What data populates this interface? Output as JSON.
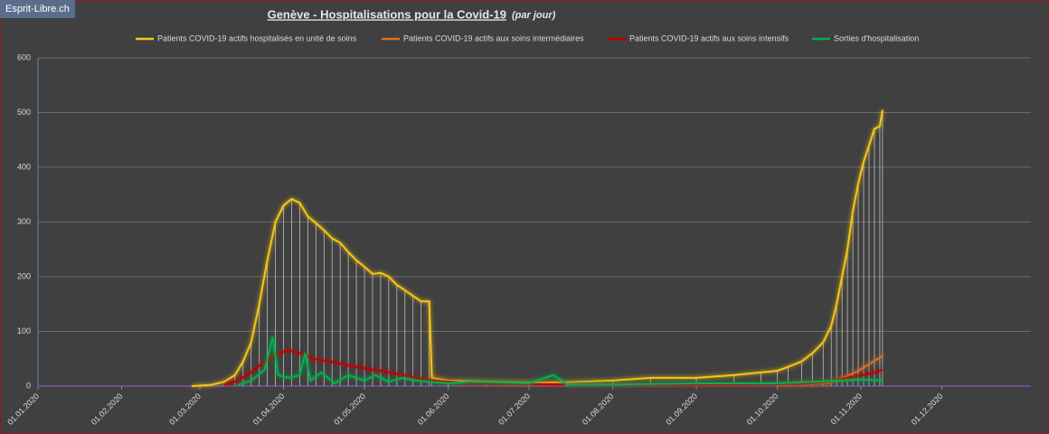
{
  "watermark": "Esprit-Libre.ch",
  "chart_data": {
    "type": "line",
    "title": "Genève - Hospitalisations pour la Covid-19",
    "subtitle": "(par jour)",
    "grid": true,
    "drop_lines": true,
    "legend": "top",
    "xlim": [
      "2020-01-01",
      "2021-01-03"
    ],
    "xticks": [
      {
        "value": "2020-01-01",
        "label": "01.01.2020"
      },
      {
        "value": "2020-02-01",
        "label": "01.02.2020"
      },
      {
        "value": "2020-03-01",
        "label": "01.03.2020"
      },
      {
        "value": "2020-04-01",
        "label": "01.04.2020"
      },
      {
        "value": "2020-05-01",
        "label": "01.05.2020"
      },
      {
        "value": "2020-06-01",
        "label": "01.06.2020"
      },
      {
        "value": "2020-07-01",
        "label": "01.07.2020"
      },
      {
        "value": "2020-08-01",
        "label": "01.08.2020"
      },
      {
        "value": "2020-09-01",
        "label": "01.09.2020"
      },
      {
        "value": "2020-10-01",
        "label": "01.10.2020"
      },
      {
        "value": "2020-11-01",
        "label": "01.11.2020"
      },
      {
        "value": "2020-12-01",
        "label": "01.12.2020"
      }
    ],
    "ylim": [
      0,
      600
    ],
    "yticks": [
      0,
      100,
      200,
      300,
      400,
      500,
      600
    ],
    "series": [
      {
        "name": "Patients COVID-19 actifs  hospitalisés en unité de soins",
        "color": "#f5c518",
        "x": [
          "2020-02-27",
          "2020-03-05",
          "2020-03-10",
          "2020-03-14",
          "2020-03-17",
          "2020-03-20",
          "2020-03-23",
          "2020-03-26",
          "2020-03-29",
          "2020-04-01",
          "2020-04-04",
          "2020-04-07",
          "2020-04-10",
          "2020-04-13",
          "2020-04-16",
          "2020-04-19",
          "2020-04-22",
          "2020-04-25",
          "2020-04-28",
          "2020-05-01",
          "2020-05-04",
          "2020-05-07",
          "2020-05-10",
          "2020-05-13",
          "2020-05-16",
          "2020-05-19",
          "2020-05-22",
          "2020-05-25",
          "2020-05-26",
          "2020-06-01",
          "2020-06-15",
          "2020-07-01",
          "2020-07-15",
          "2020-08-01",
          "2020-08-15",
          "2020-09-01",
          "2020-09-15",
          "2020-09-25",
          "2020-10-01",
          "2020-10-05",
          "2020-10-10",
          "2020-10-14",
          "2020-10-18",
          "2020-10-21",
          "2020-10-23",
          "2020-10-25",
          "2020-10-27",
          "2020-10-29",
          "2020-10-31",
          "2020-11-02",
          "2020-11-04",
          "2020-11-06",
          "2020-11-08",
          "2020-11-09"
        ],
        "values": [
          0,
          2,
          8,
          20,
          45,
          80,
          150,
          230,
          300,
          330,
          342,
          335,
          310,
          298,
          285,
          270,
          262,
          245,
          230,
          218,
          205,
          207,
          200,
          185,
          175,
          165,
          155,
          155,
          15,
          10,
          8,
          6,
          7,
          10,
          15,
          15,
          20,
          25,
          28,
          35,
          45,
          60,
          80,
          110,
          150,
          200,
          250,
          320,
          370,
          410,
          440,
          470,
          475,
          505
        ]
      },
      {
        "name": "Patients COVID-19 actifs aux soins intermédiaires",
        "color": "#e07020",
        "x": [
          "2020-10-01",
          "2020-10-10",
          "2020-10-20",
          "2020-10-25",
          "2020-10-30",
          "2020-11-04",
          "2020-11-09"
        ],
        "values": [
          2,
          3,
          5,
          15,
          25,
          40,
          55
        ]
      },
      {
        "name": "Patients COVID-19 actifs aux soins intensifs",
        "color": "#c00000",
        "x": [
          "2020-03-10",
          "2020-03-15",
          "2020-03-20",
          "2020-03-25",
          "2020-03-30",
          "2020-04-03",
          "2020-04-07",
          "2020-04-12",
          "2020-04-18",
          "2020-04-25",
          "2020-05-02",
          "2020-05-10",
          "2020-05-20",
          "2020-05-26",
          "2020-06-10",
          "2020-07-15",
          "2020-08-15",
          "2020-09-15",
          "2020-10-10",
          "2020-10-20",
          "2020-10-27",
          "2020-11-02",
          "2020-11-06",
          "2020-11-09"
        ],
        "values": [
          2,
          10,
          25,
          45,
          60,
          65,
          60,
          50,
          45,
          38,
          32,
          25,
          15,
          10,
          5,
          3,
          2,
          2,
          4,
          8,
          15,
          20,
          25,
          30
        ]
      },
      {
        "name": "Sorties d'hospitalisation",
        "color": "#00b050",
        "x": [
          "2020-03-15",
          "2020-03-20",
          "2020-03-25",
          "2020-03-28",
          "2020-03-30",
          "2020-04-03",
          "2020-04-07",
          "2020-04-09",
          "2020-04-11",
          "2020-04-15",
          "2020-04-20",
          "2020-04-25",
          "2020-05-01",
          "2020-05-05",
          "2020-05-10",
          "2020-05-15",
          "2020-05-20",
          "2020-05-25",
          "2020-06-01",
          "2020-06-10",
          "2020-07-01",
          "2020-07-10",
          "2020-07-15",
          "2020-08-01",
          "2020-09-01",
          "2020-10-01",
          "2020-10-15",
          "2020-11-01",
          "2020-11-09"
        ],
        "values": [
          2,
          10,
          30,
          90,
          20,
          15,
          20,
          60,
          10,
          25,
          5,
          20,
          10,
          20,
          8,
          15,
          10,
          8,
          5,
          8,
          5,
          20,
          3,
          3,
          5,
          5,
          8,
          12,
          10
        ]
      }
    ]
  }
}
